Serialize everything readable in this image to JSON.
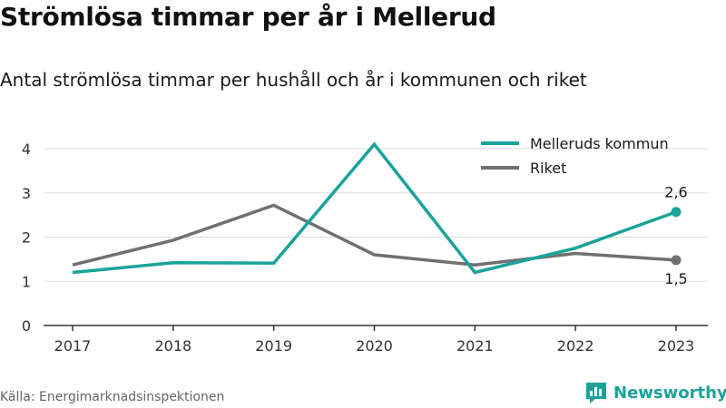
{
  "title": "Strömlösa timmar per år i Mellerud",
  "subtitle": "Antal strömlösa timmar per hushåll och år i kommunen och riket",
  "source": "Källa: Energimarknadsinspektionen",
  "brand": {
    "name": "Newsworthy",
    "logo_icon": "bar-chart-icon"
  },
  "colors": {
    "accent": "#1aa39a",
    "secondary": "#707070"
  },
  "chart_data": {
    "type": "line",
    "x": [
      "2017",
      "2018",
      "2019",
      "2020",
      "2021",
      "2022",
      "2023"
    ],
    "series": [
      {
        "name": "Melleruds kommun",
        "color": "#1aa39a",
        "values": [
          1.2,
          1.42,
          1.41,
          4.1,
          1.2,
          1.75,
          2.57
        ]
      },
      {
        "name": "Riket",
        "color": "#707070",
        "values": [
          1.37,
          1.93,
          2.72,
          1.6,
          1.37,
          1.63,
          1.48
        ]
      }
    ],
    "ylim": [
      0,
      4.2
    ],
    "yticks": [
      0,
      1,
      2,
      3,
      4
    ],
    "grid": true,
    "legend_position": "top-right",
    "end_labels": [
      "2,6",
      "1,5"
    ]
  }
}
